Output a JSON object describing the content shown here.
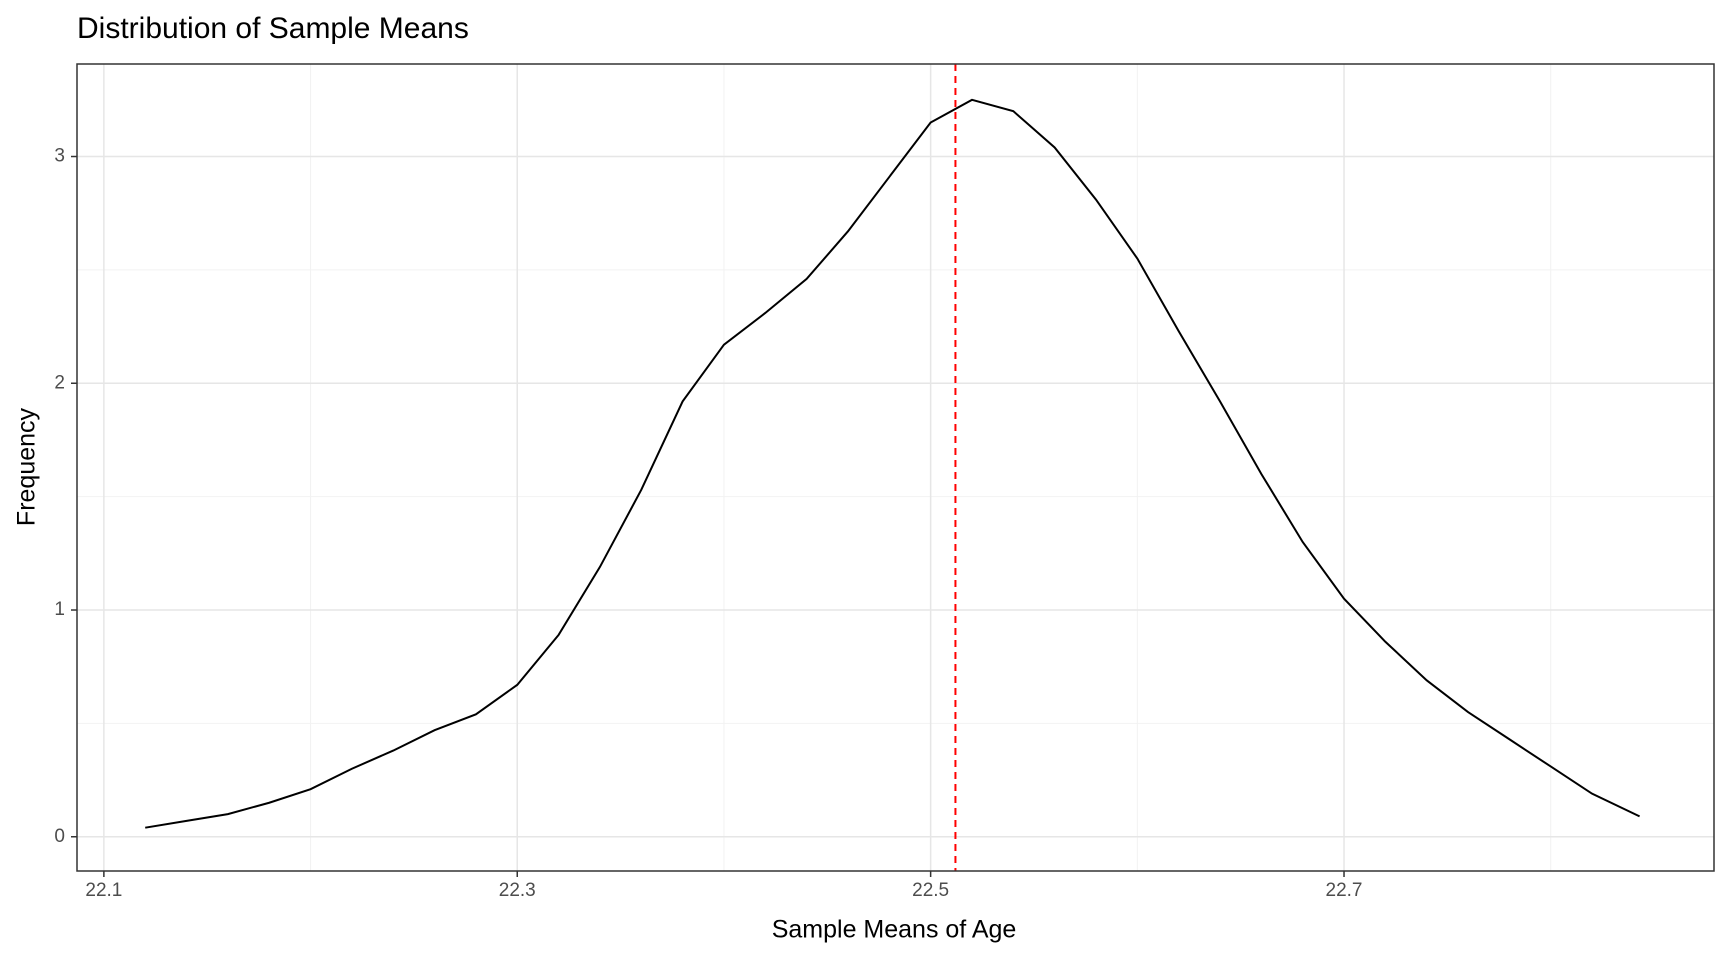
{
  "chart_data": {
    "type": "line",
    "title": "Distribution of Sample Means",
    "xlabel": "Sample Means of Age",
    "ylabel": "Frequency",
    "x": [
      22.12,
      22.14,
      22.16,
      22.18,
      22.2,
      22.22,
      22.24,
      22.26,
      22.28,
      22.3,
      22.32,
      22.34,
      22.36,
      22.38,
      22.4,
      22.42,
      22.44,
      22.46,
      22.48,
      22.5,
      22.52,
      22.54,
      22.56,
      22.58,
      22.6,
      22.62,
      22.64,
      22.66,
      22.68,
      22.7,
      22.72,
      22.74,
      22.76,
      22.78,
      22.8,
      22.82,
      22.843
    ],
    "series": [
      {
        "color": "#000000",
        "values": [
          0.04,
          0.07,
          0.1,
          0.15,
          0.21,
          0.3,
          0.38,
          0.47,
          0.54,
          0.67,
          0.89,
          1.19,
          1.53,
          1.92,
          2.17,
          2.31,
          2.46,
          2.67,
          2.91,
          3.15,
          3.25,
          3.2,
          3.04,
          2.81,
          2.55,
          2.23,
          1.92,
          1.6,
          1.3,
          1.05,
          0.86,
          0.69,
          0.55,
          0.43,
          0.31,
          0.19,
          0.09
        ]
      }
    ],
    "vline": {
      "value": 22.512,
      "color": "#ff0000",
      "dash": true
    },
    "xlim": [
      22.087,
      22.879
    ],
    "ylim": [
      -0.151,
      3.408
    ],
    "xticks": [
      22.1,
      22.3,
      22.5,
      22.7
    ],
    "yticks": [
      0,
      1,
      2,
      3
    ],
    "xminor": [
      22.2,
      22.4,
      22.6,
      22.8
    ],
    "yminor": [
      0.5,
      1.5,
      2.5
    ],
    "grid": true
  }
}
